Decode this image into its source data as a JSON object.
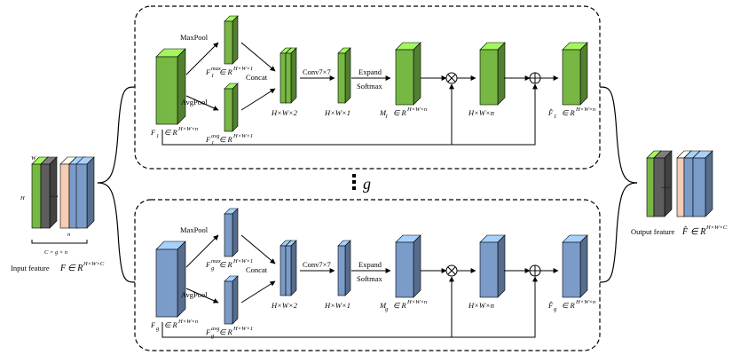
{
  "colors": {
    "green_front": "#77b744",
    "green_top": "#a3d27c",
    "green_side": "#4e8a2a",
    "blue_front": "#7b9bc9",
    "blue_top": "#b2c8e6",
    "blue_side": "#526f9e",
    "peach_front": "#f4cdb4",
    "gray_front": "#5e5e5e"
  },
  "group_label": "g",
  "ops": {
    "maxpool": "MaxPool",
    "avgpool": "AvgPool",
    "concat": "Concat",
    "conv": "Conv7×7",
    "expand": "Expand",
    "softmax": "Softmax",
    "mult": "⊗",
    "add": "⊕"
  },
  "dims": {
    "hw2": "H×W×2",
    "hw1": "H×W×1",
    "hwn": "H×W×n"
  },
  "top": {
    "input_sym": "F",
    "input_sub": "1",
    "max_sym": "F",
    "max_sub": "1",
    "max_sup": "max",
    "avg_sym": "F",
    "avg_sub": "1",
    "avg_sup": "avg",
    "m_sym": "M",
    "m_sub": "1",
    "out_sym": "F̂",
    "out_sub": "1"
  },
  "bottom": {
    "input_sym": "F",
    "input_sub": "g",
    "max_sym": "F",
    "max_sub": "g",
    "max_sup": "max",
    "avg_sym": "F",
    "avg_sub": "g",
    "avg_sup": "avg",
    "m_sym": "M",
    "m_sub": "g",
    "out_sym": "F̂",
    "out_sub": "g"
  },
  "space": {
    "in": "∈ R",
    "sup_hwn": "H×W×n",
    "sup_hw1": "H×W×1",
    "sup_hwc": "H×W×C"
  },
  "input_feature": {
    "label": "Input feature",
    "sym": "F",
    "dim_w": "W",
    "dim_h": "H",
    "dim_n": "n",
    "c_eq": "C = g × n",
    "dots": "…"
  },
  "output_feature": {
    "label": "Output feature",
    "sym": "F̂",
    "dots": "…"
  }
}
